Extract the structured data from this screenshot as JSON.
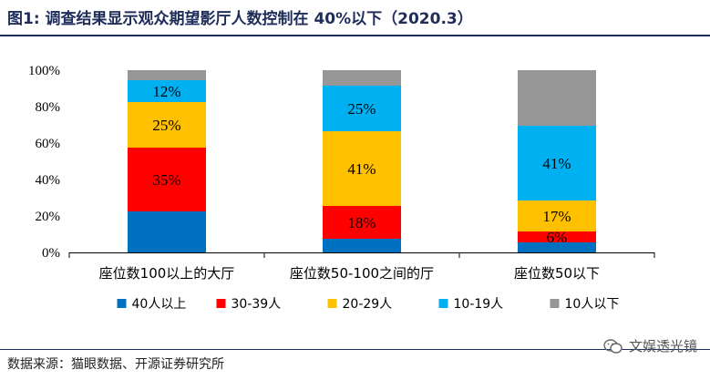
{
  "header": {
    "title": "图1:  调查结果显示观众期望影厅人数控制在 40%以下（2020.3）"
  },
  "footer": {
    "source": "数据来源：猫眼数据、开源证券研究所",
    "watermark": "文娱透光镜",
    "watermark_icon": "wechat-icon"
  },
  "chart_data": {
    "type": "bar",
    "stacked": true,
    "categories": [
      "座位数100以上的大厅",
      "座位数50-100之间的厅",
      "座位数50以下"
    ],
    "series": [
      {
        "name": "40人以上",
        "color": "#0070c0",
        "values": [
          22.5,
          7.5,
          5.5
        ],
        "labels": [
          "",
          "",
          ""
        ]
      },
      {
        "name": "30-39人",
        "color": "#ff0000",
        "values": [
          35,
          18,
          6
        ],
        "labels": [
          "35%",
          "18%",
          "6%"
        ]
      },
      {
        "name": "20-29人",
        "color": "#ffc000",
        "values": [
          25,
          41,
          17
        ],
        "labels": [
          "25%",
          "41%",
          "17%"
        ]
      },
      {
        "name": "10-19人",
        "color": "#00b0f0",
        "values": [
          12,
          25,
          41
        ],
        "labels": [
          "12%",
          "25%",
          "41%"
        ]
      },
      {
        "name": "10人以下",
        "color": "#969696",
        "values": [
          5.5,
          8.5,
          30.5
        ],
        "labels": [
          "",
          "",
          ""
        ]
      }
    ],
    "yticks": [
      "0%",
      "20%",
      "40%",
      "60%",
      "80%",
      "100%"
    ],
    "ylim": [
      0,
      100
    ],
    "legend_position": "bottom",
    "grid": false
  }
}
